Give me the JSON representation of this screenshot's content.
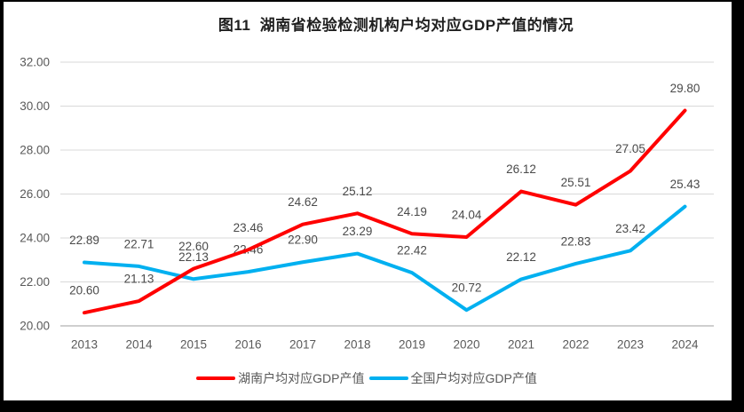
{
  "title": "图11  湖南省检验检测机构户均对应GDP产值的情况",
  "chart_data": {
    "type": "line",
    "title": "图11  湖南省检验检测机构户均对应GDP产值的情况",
    "categories": [
      "2013",
      "2014",
      "2015",
      "2016",
      "2017",
      "2018",
      "2019",
      "2020",
      "2021",
      "2022",
      "2023",
      "2024"
    ],
    "series": [
      {
        "name": "湖南户均对应GDP产值",
        "color": "#ff0000",
        "values": [
          20.6,
          21.13,
          22.6,
          23.46,
          24.62,
          25.12,
          24.19,
          24.04,
          26.12,
          25.51,
          27.05,
          29.8
        ]
      },
      {
        "name": "全国户均对应GDP产值",
        "color": "#00b0f0",
        "values": [
          22.89,
          22.71,
          22.13,
          22.46,
          22.9,
          23.29,
          22.42,
          20.72,
          22.12,
          22.83,
          23.42,
          25.43
        ]
      }
    ],
    "ylim": [
      20,
      32
    ],
    "ytick_step": 2,
    "yticks": [
      "20.00",
      "22.00",
      "24.00",
      "26.00",
      "28.00",
      "30.00",
      "32.00"
    ],
    "grid": true,
    "legend_position": "bottom",
    "data_labels": "above each point, two decimals"
  },
  "colors": {
    "hunan_line": "#ff0000",
    "national_line": "#00b0f0",
    "gridline": "#d9d9d9",
    "axis_line": "#bfbfbf",
    "tick_text": "#595959",
    "data_label_text": "#4a4a4a",
    "title_text": "#1f1f1f",
    "frame": "#000000",
    "background": "#ffffff"
  }
}
